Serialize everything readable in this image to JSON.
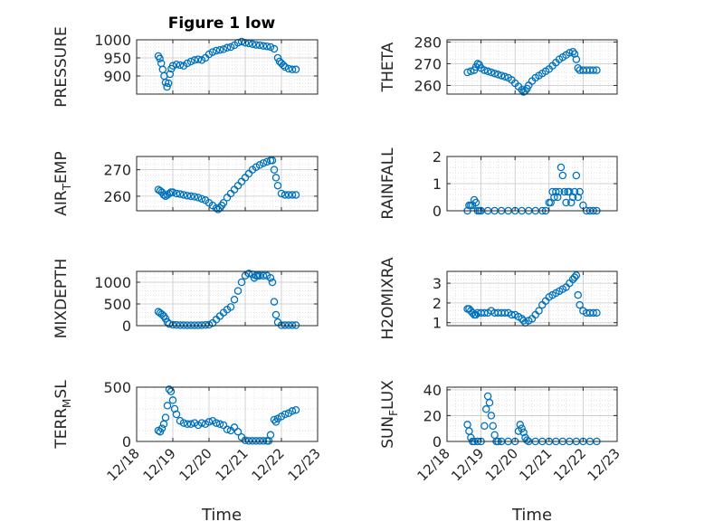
{
  "title": "Figure 1 low",
  "chart_data": [
    {
      "type": "scatter",
      "ylabel": "PRESSURE",
      "ylim": [
        850,
        1000
      ],
      "yticks": [
        900,
        950,
        1000
      ],
      "ytick_labels": [
        "900",
        "950",
        "1000"
      ],
      "xlim": [
        "12/18",
        "12/23"
      ],
      "grid": "on",
      "color": "#0072BD",
      "x": [
        18.6,
        18.64,
        18.68,
        18.72,
        18.76,
        18.8,
        18.84,
        18.88,
        18.92,
        18.96,
        19.0,
        19.1,
        19.2,
        19.3,
        19.4,
        19.5,
        19.6,
        19.7,
        19.8,
        19.9,
        20.0,
        20.1,
        20.2,
        20.3,
        20.4,
        20.5,
        20.6,
        20.7,
        20.8,
        20.9,
        21.0,
        21.1,
        21.2,
        21.3,
        21.4,
        21.5,
        21.6,
        21.7,
        21.8,
        21.9,
        21.95,
        22.0,
        22.05,
        22.1,
        22.2,
        22.3,
        22.4
      ],
      "y": [
        955,
        948,
        935,
        918,
        900,
        882,
        870,
        880,
        905,
        920,
        928,
        932,
        930,
        928,
        935,
        940,
        944,
        946,
        944,
        950,
        960,
        966,
        970,
        972,
        974,
        978,
        980,
        985,
        992,
        995,
        992,
        990,
        988,
        986,
        985,
        983,
        982,
        980,
        975,
        950,
        940,
        935,
        930,
        925,
        920,
        918,
        918
      ]
    },
    {
      "type": "scatter",
      "ylabel": "THETA",
      "ylim": [
        256,
        281
      ],
      "yticks": [
        260,
        270,
        280
      ],
      "ytick_labels": [
        "260",
        "270",
        "280"
      ],
      "xlim": [
        "12/18",
        "12/23"
      ],
      "grid": "on",
      "color": "#0072BD",
      "x": [
        18.6,
        18.7,
        18.8,
        18.85,
        18.9,
        18.95,
        19.0,
        19.1,
        19.2,
        19.3,
        19.4,
        19.5,
        19.6,
        19.7,
        19.8,
        19.9,
        20.0,
        20.1,
        20.2,
        20.25,
        20.3,
        20.35,
        20.4,
        20.5,
        20.6,
        20.7,
        20.8,
        20.9,
        21.0,
        21.1,
        21.2,
        21.3,
        21.4,
        21.5,
        21.6,
        21.7,
        21.75,
        21.8,
        21.85,
        21.9,
        22.0,
        22.1,
        22.2,
        22.3,
        22.4
      ],
      "y": [
        266,
        266.5,
        267,
        268.5,
        270,
        269.5,
        268,
        267,
        266.5,
        266,
        265.5,
        265,
        264.5,
        264,
        263.5,
        262.5,
        261,
        259.5,
        258,
        257,
        257.5,
        258.5,
        260,
        262,
        263.5,
        264.5,
        265.5,
        266.5,
        267.5,
        269,
        270.5,
        272,
        273,
        274,
        275,
        275.5,
        274.5,
        272,
        268,
        267,
        267,
        267,
        267,
        267,
        267
      ]
    },
    {
      "type": "scatter",
      "ylabel": "AIR_TEMP",
      "ylim": [
        254.5,
        275
      ],
      "yticks": [
        260,
        270
      ],
      "ytick_labels": [
        "260",
        "270"
      ],
      "xlim": [
        "12/18",
        "12/23"
      ],
      "grid": "on",
      "color": "#0072BD",
      "x": [
        18.6,
        18.65,
        18.7,
        18.75,
        18.8,
        18.85,
        18.9,
        18.95,
        19.0,
        19.1,
        19.2,
        19.3,
        19.4,
        19.5,
        19.6,
        19.7,
        19.8,
        19.9,
        20.0,
        20.1,
        20.2,
        20.25,
        20.3,
        20.35,
        20.4,
        20.5,
        20.6,
        20.7,
        20.8,
        20.9,
        21.0,
        21.1,
        21.2,
        21.3,
        21.4,
        21.5,
        21.6,
        21.7,
        21.75,
        21.8,
        21.85,
        21.9,
        22.0,
        22.1,
        22.2,
        22.3,
        22.4
      ],
      "y": [
        262.5,
        262,
        261.5,
        260.5,
        260,
        260.5,
        261,
        261.5,
        261.5,
        261,
        260.8,
        260.5,
        260.2,
        260,
        259.8,
        259.5,
        259,
        258.5,
        257.5,
        256.5,
        255.5,
        255,
        255.5,
        256.5,
        257.5,
        259.5,
        261,
        262.5,
        264,
        265.5,
        267,
        268.5,
        270,
        271,
        271.8,
        272.5,
        273,
        273.5,
        273.5,
        270,
        267,
        264,
        261,
        260.5,
        260.5,
        260.5,
        260.5
      ]
    },
    {
      "type": "scatter",
      "ylabel": "RAINFALL",
      "ylim": [
        0,
        2
      ],
      "yticks": [
        0,
        1,
        2
      ],
      "ytick_labels": [
        "0",
        "1",
        "2"
      ],
      "xlim": [
        "12/18",
        "12/23"
      ],
      "grid": "on",
      "color": "#0072BD",
      "x": [
        18.6,
        18.65,
        18.7,
        18.75,
        18.8,
        18.85,
        18.9,
        18.95,
        19.0,
        19.2,
        19.4,
        19.6,
        19.8,
        20.0,
        20.2,
        20.4,
        20.6,
        20.8,
        20.9,
        21.0,
        21.05,
        21.1,
        21.15,
        21.2,
        21.25,
        21.3,
        21.35,
        21.4,
        21.45,
        21.5,
        21.55,
        21.6,
        21.65,
        21.7,
        21.75,
        21.8,
        21.85,
        21.9,
        22.0,
        22.1,
        22.2,
        22.3,
        22.4
      ],
      "y": [
        0,
        0.2,
        0.2,
        0.2,
        0.4,
        0.3,
        0,
        0,
        0,
        0,
        0,
        0,
        0,
        0,
        0,
        0,
        0,
        0,
        0,
        0.3,
        0.3,
        0.7,
        0.5,
        0.7,
        0.5,
        0.7,
        1.6,
        1.3,
        0.7,
        0.3,
        0.7,
        0.7,
        0.3,
        0.5,
        0.7,
        1.3,
        0.5,
        0.7,
        0.2,
        0,
        0,
        0,
        0
      ]
    },
    {
      "type": "scatter",
      "ylabel": "MIXDEPTH",
      "ylim": [
        0,
        1250
      ],
      "yticks": [
        0,
        500,
        1000
      ],
      "ytick_labels": [
        "0",
        "500",
        "1000"
      ],
      "xlim": [
        "12/18",
        "12/23"
      ],
      "grid": "on",
      "color": "#0072BD",
      "x": [
        18.6,
        18.65,
        18.7,
        18.75,
        18.8,
        18.85,
        18.9,
        19.0,
        19.1,
        19.2,
        19.3,
        19.4,
        19.5,
        19.6,
        19.7,
        19.8,
        19.9,
        20.0,
        20.1,
        20.2,
        20.3,
        20.4,
        20.5,
        20.6,
        20.7,
        20.8,
        20.9,
        21.0,
        21.1,
        21.2,
        21.25,
        21.3,
        21.35,
        21.4,
        21.5,
        21.6,
        21.7,
        21.75,
        21.8,
        21.85,
        21.9,
        22.0,
        22.1,
        22.2,
        22.3,
        22.4
      ],
      "y": [
        320,
        290,
        260,
        220,
        160,
        80,
        40,
        20,
        15,
        10,
        10,
        8,
        8,
        8,
        8,
        10,
        15,
        20,
        60,
        140,
        220,
        300,
        370,
        430,
        600,
        800,
        1000,
        1150,
        1200,
        1180,
        1100,
        1150,
        1150,
        1150,
        1150,
        1150,
        1100,
        1000,
        550,
        250,
        80,
        10,
        10,
        10,
        10,
        10
      ]
    },
    {
      "type": "scatter",
      "ylabel": "H2OMIXRA",
      "ylim": [
        0.85,
        3.6
      ],
      "yticks": [
        1,
        2,
        3
      ],
      "ytick_labels": [
        "1",
        "2",
        "3"
      ],
      "xlim": [
        "12/18",
        "12/23"
      ],
      "grid": "on",
      "color": "#0072BD",
      "x": [
        18.6,
        18.65,
        18.7,
        18.75,
        18.8,
        18.85,
        18.9,
        19.0,
        19.1,
        19.2,
        19.3,
        19.4,
        19.5,
        19.6,
        19.7,
        19.8,
        19.9,
        20.0,
        20.1,
        20.2,
        20.25,
        20.3,
        20.4,
        20.5,
        20.6,
        20.7,
        20.8,
        20.9,
        21.0,
        21.1,
        21.2,
        21.3,
        21.4,
        21.5,
        21.6,
        21.7,
        21.75,
        21.8,
        21.85,
        21.9,
        22.0,
        22.1,
        22.2,
        22.3,
        22.4
      ],
      "y": [
        1.7,
        1.7,
        1.6,
        1.5,
        1.4,
        1.4,
        1.5,
        1.5,
        1.5,
        1.5,
        1.6,
        1.5,
        1.5,
        1.5,
        1.5,
        1.5,
        1.4,
        1.4,
        1.3,
        1.2,
        1.1,
        1.0,
        1.1,
        1.2,
        1.4,
        1.6,
        1.9,
        2.1,
        2.3,
        2.4,
        2.5,
        2.6,
        2.7,
        2.8,
        3.0,
        3.2,
        3.3,
        3.4,
        2.4,
        1.9,
        1.6,
        1.5,
        1.5,
        1.5,
        1.5
      ]
    },
    {
      "type": "scatter",
      "ylabel": "TERR_MSL",
      "ylim": [
        0,
        500
      ],
      "yticks": [
        0,
        500
      ],
      "ytick_labels": [
        "0",
        "500"
      ],
      "xlim": [
        "12/18",
        "12/23"
      ],
      "grid": "on",
      "color": "#0072BD",
      "x": [
        18.6,
        18.65,
        18.7,
        18.75,
        18.8,
        18.85,
        18.9,
        18.95,
        19.0,
        19.05,
        19.1,
        19.2,
        19.3,
        19.4,
        19.5,
        19.6,
        19.7,
        19.8,
        19.9,
        20.0,
        20.1,
        20.2,
        20.3,
        20.4,
        20.5,
        20.6,
        20.7,
        20.8,
        20.9,
        21.0,
        21.1,
        21.2,
        21.3,
        21.4,
        21.5,
        21.6,
        21.65,
        21.7,
        21.8,
        21.85,
        21.9,
        22.0,
        22.1,
        22.2,
        22.3,
        22.4
      ],
      "y": [
        100,
        90,
        120,
        160,
        220,
        330,
        480,
        460,
        380,
        300,
        250,
        190,
        170,
        160,
        160,
        170,
        150,
        170,
        160,
        180,
        190,
        170,
        160,
        150,
        110,
        100,
        130,
        90,
        40,
        10,
        5,
        5,
        5,
        5,
        5,
        5,
        5,
        60,
        200,
        180,
        210,
        230,
        250,
        260,
        280,
        290
      ]
    },
    {
      "type": "scatter",
      "ylabel": "SUN_FLUX",
      "ylim": [
        0,
        42
      ],
      "yticks": [
        0,
        20,
        40
      ],
      "ytick_labels": [
        "0",
        "20",
        "40"
      ],
      "xlim": [
        "12/18",
        "12/23"
      ],
      "grid": "on",
      "color": "#0072BD",
      "x": [
        18.6,
        18.65,
        18.7,
        18.75,
        18.8,
        18.9,
        19.0,
        19.1,
        19.15,
        19.2,
        19.25,
        19.3,
        19.35,
        19.4,
        19.45,
        19.5,
        19.6,
        19.8,
        20.0,
        20.1,
        20.15,
        20.2,
        20.25,
        20.3,
        20.35,
        20.4,
        20.6,
        20.8,
        21.0,
        21.2,
        21.4,
        21.6,
        21.8,
        22.0,
        22.2,
        22.4
      ],
      "y": [
        13,
        8,
        3,
        0,
        0,
        0,
        0,
        12,
        25,
        35,
        30,
        20,
        12,
        5,
        0,
        0,
        0,
        0,
        0,
        8,
        13,
        10,
        7,
        3,
        1,
        0,
        0,
        0,
        0,
        0,
        0,
        0,
        0,
        0,
        0,
        0
      ]
    }
  ],
  "xaxis": {
    "tick_values": [
      18,
      19,
      20,
      21,
      22,
      23
    ],
    "tick_labels": [
      "12/18",
      "12/19",
      "12/20",
      "12/21",
      "12/22",
      "12/23"
    ],
    "label": "Time"
  }
}
